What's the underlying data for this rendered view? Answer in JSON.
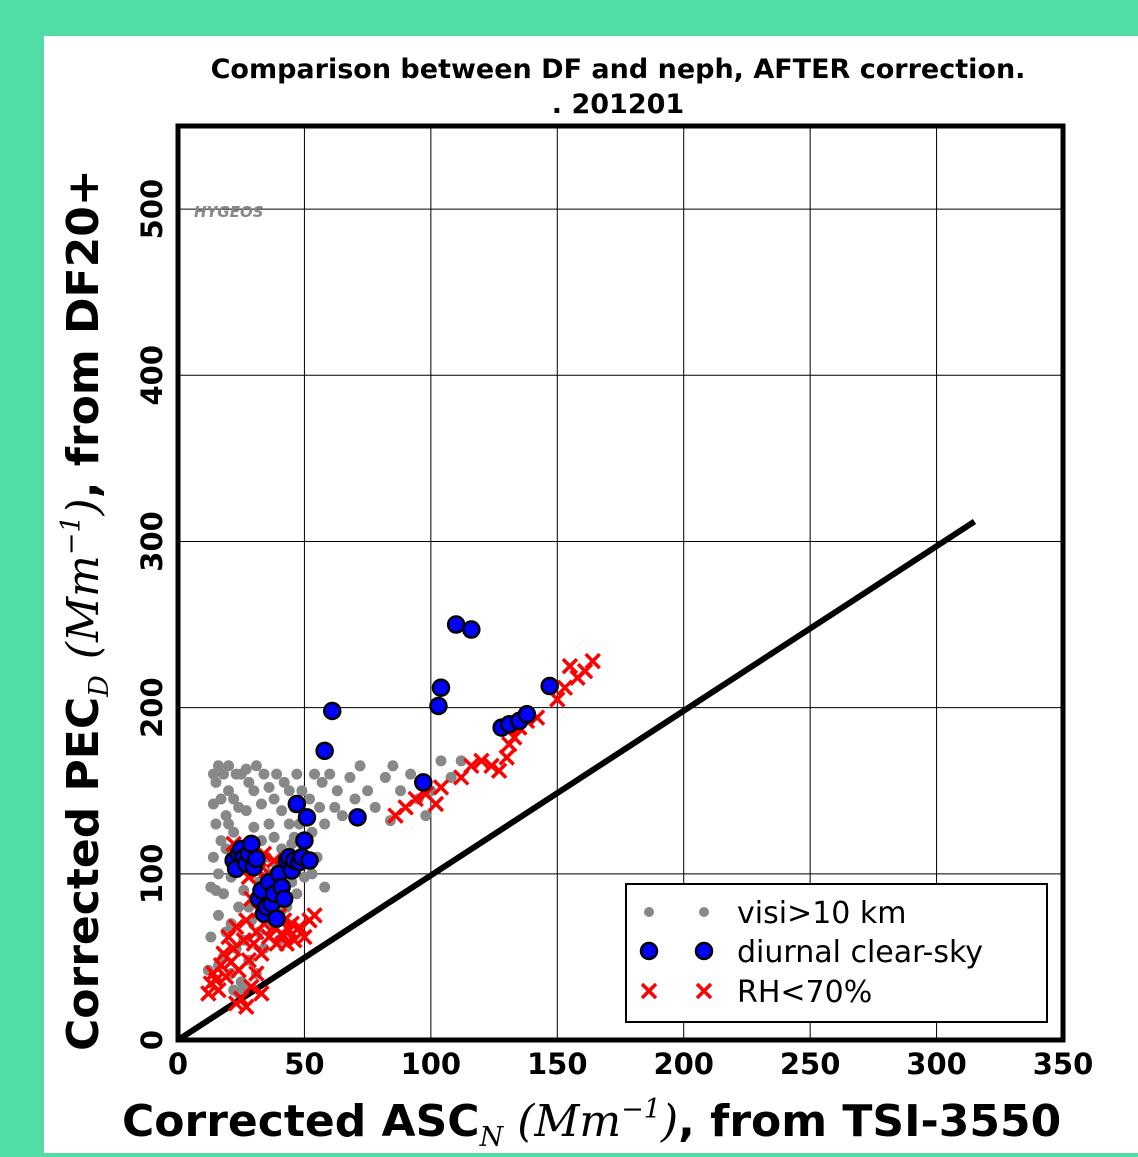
{
  "colors": {
    "background": "#52dca6",
    "visi": "#888888",
    "clear_sky": "#0000ff",
    "rh": "#ff0000",
    "line": "#000000"
  },
  "watermark": "HYGEOS",
  "chart_data": {
    "type": "scatter",
    "title": "Comparison between DF and neph, AFTER correction.",
    "subtitle": ". 201201",
    "xlabel": {
      "prefix": "Corrected ASC",
      "sub": "N",
      "unit_open": "(",
      "unit_base": "Mm",
      "unit_exp": "−1",
      "unit_close": ")",
      "suffix": ", from TSI-3550"
    },
    "ylabel": {
      "prefix": "Corrected PEC",
      "sub": "D",
      "unit_open": "(",
      "unit_base": "Mm",
      "unit_exp": "−1",
      "unit_close": ")",
      "suffix": ", from DF20+"
    },
    "xlim": [
      0,
      350
    ],
    "ylim": [
      0,
      550
    ],
    "xticks": [
      0,
      50,
      100,
      150,
      200,
      250,
      300,
      350
    ],
    "yticks": [
      0,
      100,
      200,
      300,
      400,
      500
    ],
    "grid": true,
    "legend_position": "lower-right",
    "reference_line": [
      [
        0,
        0
      ],
      [
        315,
        312
      ]
    ],
    "series": [
      {
        "name": "visi>10 km",
        "marker": "dot",
        "points": [
          [
            12,
            42
          ],
          [
            13,
            62
          ],
          [
            13,
            92
          ],
          [
            14,
            110
          ],
          [
            15,
            130
          ],
          [
            15,
            155
          ],
          [
            14,
            160
          ],
          [
            16,
            45
          ],
          [
            16,
            75
          ],
          [
            16,
            100
          ],
          [
            17,
            120
          ],
          [
            17,
            145
          ],
          [
            18,
            160
          ],
          [
            18,
            50
          ],
          [
            18,
            88
          ],
          [
            19,
            115
          ],
          [
            19,
            135
          ],
          [
            20,
            150
          ],
          [
            20,
            165
          ],
          [
            21,
            40
          ],
          [
            21,
            70
          ],
          [
            21,
            98
          ],
          [
            22,
            125
          ],
          [
            22,
            145
          ],
          [
            23,
            160
          ],
          [
            23,
            55
          ],
          [
            24,
            80
          ],
          [
            24,
            105
          ],
          [
            24,
            140
          ],
          [
            25,
            160
          ],
          [
            25,
            35
          ],
          [
            26,
            60
          ],
          [
            26,
            90
          ],
          [
            27,
            115
          ],
          [
            27,
            138
          ],
          [
            28,
            155
          ],
          [
            28,
            48
          ],
          [
            29,
            72
          ],
          [
            29,
            100
          ],
          [
            30,
            128
          ],
          [
            30,
            150
          ],
          [
            31,
            165
          ],
          [
            31,
            40
          ],
          [
            32,
            65
          ],
          [
            32,
            95
          ],
          [
            33,
            120
          ],
          [
            33,
            142
          ],
          [
            34,
            160
          ],
          [
            34,
            55
          ],
          [
            35,
            85
          ],
          [
            35,
            110
          ],
          [
            36,
            130
          ],
          [
            36,
            152
          ],
          [
            37,
            70
          ],
          [
            37,
            98
          ],
          [
            38,
            122
          ],
          [
            38,
            145
          ],
          [
            39,
            160
          ],
          [
            40,
            60
          ],
          [
            40,
            90
          ],
          [
            41,
            115
          ],
          [
            41,
            138
          ],
          [
            42,
            155
          ],
          [
            43,
            80
          ],
          [
            43,
            105
          ],
          [
            44,
            130
          ],
          [
            44,
            150
          ],
          [
            45,
            95
          ],
          [
            45,
            118
          ],
          [
            46,
            140
          ],
          [
            47,
            160
          ],
          [
            48,
            110
          ],
          [
            48,
            130
          ],
          [
            49,
            150
          ],
          [
            50,
            120
          ],
          [
            50,
            98
          ],
          [
            52,
            145
          ],
          [
            53,
            125
          ],
          [
            54,
            160
          ],
          [
            55,
            110
          ],
          [
            56,
            140
          ],
          [
            57,
            155
          ],
          [
            58,
            130
          ],
          [
            60,
            160
          ],
          [
            62,
            140
          ],
          [
            63,
            150
          ],
          [
            65,
            135
          ],
          [
            68,
            158
          ],
          [
            70,
            145
          ],
          [
            72,
            165
          ],
          [
            75,
            150
          ],
          [
            78,
            140
          ],
          [
            82,
            158
          ],
          [
            84,
            132
          ],
          [
            85,
            165
          ],
          [
            88,
            150
          ],
          [
            92,
            160
          ],
          [
            95,
            145
          ],
          [
            98,
            135
          ],
          [
            100,
            150
          ],
          [
            104,
            168
          ],
          [
            108,
            158
          ],
          [
            112,
            168
          ],
          [
            22,
            30
          ],
          [
            24,
            28
          ],
          [
            26,
            32
          ],
          [
            15,
            90
          ],
          [
            19,
            65
          ],
          [
            28,
            80
          ],
          [
            33,
            88
          ],
          [
            36,
            100
          ],
          [
            41,
            78
          ],
          [
            47,
            88
          ],
          [
            53,
            100
          ],
          [
            58,
            92
          ],
          [
            14,
            142
          ],
          [
            16,
            165
          ],
          [
            20,
            130
          ],
          [
            27,
            163
          ],
          [
            39,
            105
          ],
          [
            46,
            122
          ]
        ]
      },
      {
        "name": "diurnal clear-sky",
        "marker": "circle",
        "points": [
          [
            22,
            108
          ],
          [
            23,
            103
          ],
          [
            24,
            112
          ],
          [
            25,
            115
          ],
          [
            26,
            110
          ],
          [
            27,
            106
          ],
          [
            28,
            112
          ],
          [
            29,
            118
          ],
          [
            30,
            104
          ],
          [
            31,
            109
          ],
          [
            32,
            85
          ],
          [
            33,
            90
          ],
          [
            34,
            76
          ],
          [
            35,
            80
          ],
          [
            36,
            95
          ],
          [
            37,
            82
          ],
          [
            38,
            88
          ],
          [
            39,
            73
          ],
          [
            40,
            100
          ],
          [
            41,
            92
          ],
          [
            42,
            85
          ],
          [
            43,
            108
          ],
          [
            44,
            110
          ],
          [
            45,
            102
          ],
          [
            46,
            108
          ],
          [
            47,
            142
          ],
          [
            48,
            107
          ],
          [
            49,
            110
          ],
          [
            50,
            120
          ],
          [
            51,
            134
          ],
          [
            52,
            108
          ],
          [
            58,
            174
          ],
          [
            61,
            198
          ],
          [
            71,
            134
          ],
          [
            97,
            155
          ],
          [
            103,
            201
          ],
          [
            104,
            212
          ],
          [
            110,
            250
          ],
          [
            116,
            247
          ],
          [
            128,
            188
          ],
          [
            131,
            190
          ],
          [
            135,
            192
          ],
          [
            138,
            196
          ],
          [
            147,
            213
          ]
        ]
      },
      {
        "name": "RH<70%",
        "marker": "x",
        "points": [
          [
            12,
            28
          ],
          [
            13,
            34
          ],
          [
            14,
            40
          ],
          [
            15,
            36
          ],
          [
            16,
            30
          ],
          [
            17,
            45
          ],
          [
            18,
            52
          ],
          [
            19,
            38
          ],
          [
            20,
            62
          ],
          [
            21,
            47
          ],
          [
            22,
            55
          ],
          [
            23,
            68
          ],
          [
            24,
            42
          ],
          [
            25,
            25
          ],
          [
            26,
            60
          ],
          [
            27,
            72
          ],
          [
            28,
            48
          ],
          [
            29,
            85
          ],
          [
            30,
            58
          ],
          [
            31,
            65
          ],
          [
            32,
            78
          ],
          [
            33,
            52
          ],
          [
            34,
            70
          ],
          [
            35,
            95
          ],
          [
            36,
            62
          ],
          [
            37,
            80
          ],
          [
            38,
            68
          ],
          [
            39,
            58
          ],
          [
            40,
            75
          ],
          [
            41,
            64
          ],
          [
            42,
            72
          ],
          [
            43,
            58
          ],
          [
            44,
            66
          ],
          [
            45,
            70
          ],
          [
            46,
            60
          ],
          [
            48,
            68
          ],
          [
            50,
            62
          ],
          [
            52,
            72
          ],
          [
            54,
            75
          ],
          [
            22,
            118
          ],
          [
            24,
            105
          ],
          [
            26,
            115
          ],
          [
            28,
            98
          ],
          [
            30,
            110
          ],
          [
            32,
            102
          ],
          [
            34,
            112
          ],
          [
            36,
            100
          ],
          [
            38,
            108
          ],
          [
            27,
            20
          ],
          [
            29,
            32
          ],
          [
            31,
            40
          ],
          [
            33,
            28
          ],
          [
            23,
            22
          ],
          [
            86,
            135
          ],
          [
            90,
            140
          ],
          [
            94,
            145
          ],
          [
            98,
            148
          ],
          [
            102,
            142
          ],
          [
            104,
            152
          ],
          [
            112,
            158
          ],
          [
            116,
            165
          ],
          [
            120,
            168
          ],
          [
            124,
            165
          ],
          [
            127,
            162
          ],
          [
            130,
            170
          ],
          [
            131,
            178
          ],
          [
            133,
            182
          ],
          [
            135,
            188
          ],
          [
            138,
            192
          ],
          [
            142,
            194
          ],
          [
            150,
            205
          ],
          [
            153,
            212
          ],
          [
            155,
            225
          ],
          [
            158,
            218
          ],
          [
            161,
            222
          ],
          [
            164,
            228
          ]
        ]
      }
    ]
  }
}
